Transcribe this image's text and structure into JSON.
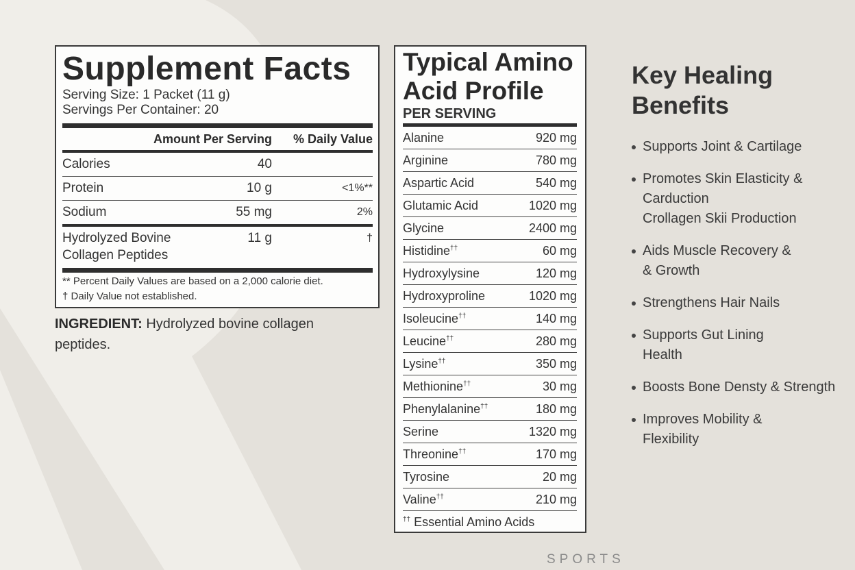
{
  "supplement_facts": {
    "title": "Supplement Facts",
    "serving_size": "Serving Size: 1 Packet (11 g)",
    "servings_per_container": "Servings Per Container: 20",
    "header_amount": "Amount Per Serving",
    "header_dv": "% Daily Value",
    "rows": [
      {
        "name": "Calories",
        "amount": "40",
        "dv": ""
      },
      {
        "name": "Protein",
        "amount": "10 g",
        "dv": "<1%**"
      },
      {
        "name": "Sodium",
        "amount": "55 mg",
        "dv": "2%"
      },
      {
        "name": "Hydrolyzed Bovine Collagen Peptides",
        "amount": "11 g",
        "dv": "†"
      }
    ],
    "footnote_1": "** Percent Daily Values are based on a 2,000 calorie diet.",
    "footnote_2": "†  Daily Value not established."
  },
  "ingredient": {
    "label": "INGREDIENT:",
    "text": " Hydrolyzed bovine collagen peptides."
  },
  "amino_profile": {
    "title": "Typical Amino Acid Profile",
    "subtitle": "PER SERVING",
    "rows": [
      {
        "name": "Alanine",
        "essential": false,
        "amount": "920 mg"
      },
      {
        "name": "Arginine",
        "essential": false,
        "amount": "780 mg"
      },
      {
        "name": "Aspartic Acid",
        "essential": false,
        "amount": "540 mg"
      },
      {
        "name": "Glutamic Acid",
        "essential": false,
        "amount": "1020 mg"
      },
      {
        "name": "Glycine",
        "essential": false,
        "amount": "2400 mg"
      },
      {
        "name": "Histidine",
        "essential": true,
        "amount": "60 mg"
      },
      {
        "name": "Hydroxylysine",
        "essential": false,
        "amount": "120 mg"
      },
      {
        "name": "Hydroxyproline",
        "essential": false,
        "amount": "1020 mg"
      },
      {
        "name": "Isoleucine",
        "essential": true,
        "amount": "140 mg"
      },
      {
        "name": "Leucine",
        "essential": true,
        "amount": "280 mg"
      },
      {
        "name": "Lysine",
        "essential": true,
        "amount": "350 mg"
      },
      {
        "name": "Methionine",
        "essential": true,
        "amount": "30 mg"
      },
      {
        "name": "Phenylalanine",
        "essential": true,
        "amount": "180 mg"
      },
      {
        "name": "Serine",
        "essential": false,
        "amount": "1320 mg"
      },
      {
        "name": "Threonine",
        "essential": true,
        "amount": "170 mg"
      },
      {
        "name": "Tyrosine",
        "essential": false,
        "amount": "20 mg"
      },
      {
        "name": "Valine",
        "essential": true,
        "amount": "210 mg"
      }
    ],
    "footnote_mark": "††",
    "footnote": " Essential Amino Acids"
  },
  "benefits": {
    "title": "Key Healing Benefits",
    "items": [
      "Supports Joint & Cartilage",
      "Promotes Skin Elasticity &\nCarduction\nCrollagen Skii Production",
      "Aids Muscle Recovery &\n& Growth",
      "Strengthens Hair Nails",
      "Supports Gut Lining\nHealth",
      "Boosts Bone Densty & Strength",
      "Improves Mobility &\nFlexibility"
    ]
  },
  "brand": "SPORTS",
  "colors": {
    "background": "#e4e1db",
    "panel": "#fdfdfc",
    "text": "#2b2b2b"
  }
}
